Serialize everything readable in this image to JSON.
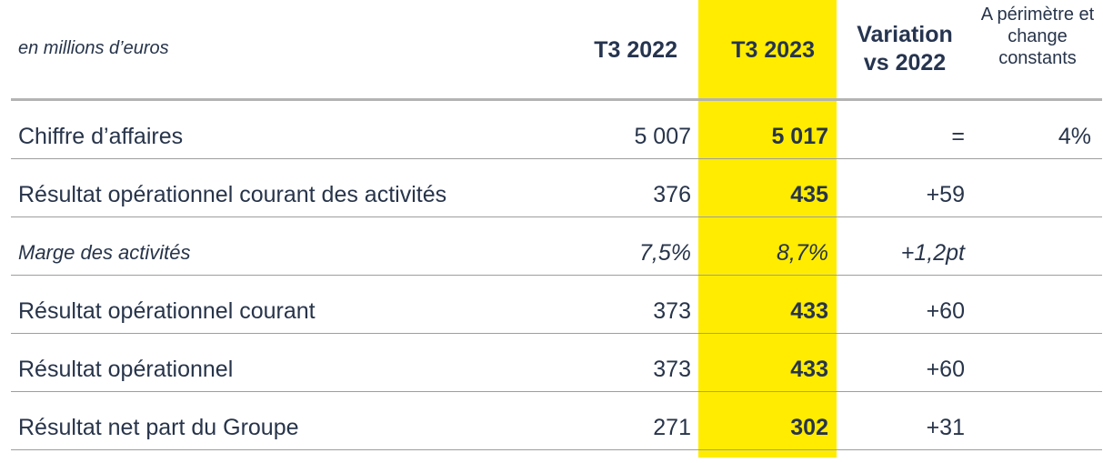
{
  "header": {
    "unit_label": "en millions d’euros",
    "col_2022": "T3 2022",
    "col_2023": "T3 2023",
    "col_variation": "Variation vs 2022",
    "col_constant": "A périmètre et change constants"
  },
  "colors": {
    "highlight": "#ffec00",
    "text": "#27344a",
    "rule": "#9e9e9e"
  },
  "rows": [
    {
      "label": "Chiffre d’affaires",
      "t3_2022": "5 007",
      "t3_2023": "5 017",
      "variation": "=",
      "constant": "4%"
    },
    {
      "label": "Résultat opérationnel courant des activités",
      "t3_2022": "376",
      "t3_2023": "435",
      "variation": "+59",
      "constant": ""
    },
    {
      "label": "Marge des activités",
      "t3_2022": "7,5%",
      "t3_2023": "8,7%",
      "variation": "+1,2pt",
      "constant": ""
    },
    {
      "label": "Résultat opérationnel courant",
      "t3_2022": "373",
      "t3_2023": "433",
      "variation": "+60",
      "constant": ""
    },
    {
      "label": "Résultat opérationnel",
      "t3_2022": "373",
      "t3_2023": "433",
      "variation": "+60",
      "constant": ""
    },
    {
      "label": "Résultat net part du Groupe",
      "t3_2022": "271",
      "t3_2023": "302",
      "variation": "+31",
      "constant": ""
    }
  ]
}
